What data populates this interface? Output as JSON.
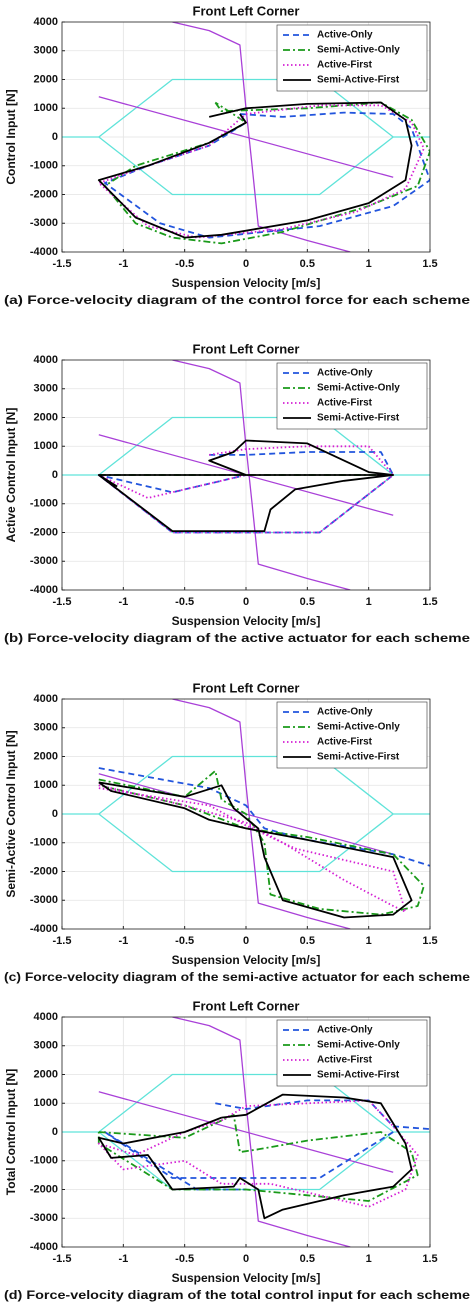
{
  "chart_data": [
    {
      "type": "line",
      "title": "Front Left Corner",
      "xlabel": "Suspension Velocity [m/s]",
      "ylabel": "Control Input [N]",
      "caption": "(a) Force-velocity diagram of the control force for each scheme",
      "xlim": [
        -1.5,
        1.5
      ],
      "xticks": [
        -1.5,
        -1,
        -0.5,
        0,
        0.5,
        1,
        1.5
      ],
      "ylim": [
        -4000,
        4000
      ],
      "yticks": [
        -4000,
        -3000,
        -2000,
        -1000,
        0,
        1000,
        2000,
        3000,
        4000
      ],
      "grid": true,
      "legend": "upper right",
      "series": [
        {
          "color": "#5fe3d9",
          "dash": "solid",
          "x": [
            -1.5,
            -1.2,
            -0.6,
            0.6,
            1.2,
            1.5,
            null,
            -1.2,
            -0.6,
            0.6,
            1.2
          ],
          "values": [
            0,
            0,
            2000,
            2000,
            0,
            0,
            null,
            0,
            -2000,
            -2000,
            0
          ]
        },
        {
          "color": "#a940d8",
          "dash": "solid",
          "x": [
            -1.2,
            1.2,
            null,
            -0.6,
            -0.3,
            -0.05,
            0,
            0.05,
            0.1,
            0.5,
            0.85
          ],
          "values": [
            1400,
            -1400,
            null,
            4000,
            3700,
            3200,
            1000,
            -1000,
            -3100,
            -3600,
            -4000
          ]
        },
        {
          "name": "Active-Only",
          "color": "#2255dd",
          "dash": "dashed",
          "x": [
            -0.05,
            0.3,
            0.8,
            1.2,
            1.35,
            1.5,
            1.2,
            0.6,
            -0.3,
            -0.7,
            -1.15,
            -0.8,
            -0.3,
            0,
            -0.05
          ],
          "values": [
            800,
            700,
            850,
            800,
            300,
            -1500,
            -2400,
            -3100,
            -3500,
            -3000,
            -1600,
            -1000,
            -300,
            500,
            800
          ]
        },
        {
          "name": "Semi-Active-Only",
          "color": "#1a9a1a",
          "dash": "dashdot",
          "x": [
            -0.25,
            -0.2,
            0.5,
            1.1,
            1.35,
            1.5,
            1.4,
            1.0,
            0.3,
            -0.2,
            -0.6,
            -0.9,
            -1.15,
            -0.9,
            -0.3,
            0,
            -0.25
          ],
          "values": [
            1200,
            900,
            1000,
            1200,
            600,
            -500,
            -1700,
            -2400,
            -3300,
            -3700,
            -3500,
            -3000,
            -1700,
            -1000,
            -200,
            500,
            1200
          ]
        },
        {
          "name": "Active-First",
          "color": "#d41fd4",
          "dash": "dotted",
          "x": [
            0,
            0.6,
            1.1,
            1.35,
            1.45,
            1.3,
            0.9,
            0.3,
            -0.4,
            -0.8,
            -1.2,
            -0.8,
            -0.3,
            0
          ],
          "values": [
            800,
            1100,
            1100,
            500,
            -400,
            -1800,
            -2600,
            -3200,
            -3500,
            -3100,
            -1600,
            -1000,
            -300,
            800
          ]
        },
        {
          "name": "Semi-Active-First",
          "color": "#000000",
          "dash": "solid",
          "x": [
            -0.3,
            -0.1,
            0,
            0.5,
            1.1,
            1.3,
            1.35,
            1.3,
            1.0,
            0.5,
            -0.2,
            -0.5,
            -0.9,
            -1.2,
            -0.8,
            -0.3,
            0,
            -0.05
          ],
          "values": [
            700,
            900,
            1000,
            1150,
            1200,
            600,
            -300,
            -1500,
            -2300,
            -2900,
            -3400,
            -3500,
            -2800,
            -1500,
            -1000,
            -200,
            500,
            800
          ]
        }
      ]
    },
    {
      "type": "line",
      "title": "Front Left Corner",
      "xlabel": "Suspension Velocity [m/s]",
      "ylabel": "Active Control Input [N]",
      "caption": "(b) Force-velocity diagram of the active actuator for each scheme",
      "xlim": [
        -1.5,
        1.5
      ],
      "xticks": [
        -1.5,
        -1,
        -0.5,
        0,
        0.5,
        1,
        1.5
      ],
      "ylim": [
        -4000,
        4000
      ],
      "yticks": [
        -4000,
        -3000,
        -2000,
        -1000,
        0,
        1000,
        2000,
        3000,
        4000
      ],
      "grid": true,
      "legend": "upper right",
      "series": [
        {
          "color": "#5fe3d9",
          "dash": "solid",
          "x": [
            -1.5,
            -1.2,
            -0.6,
            0.6,
            1.2,
            1.5,
            null,
            -1.2,
            -0.6,
            0.6,
            1.2
          ],
          "values": [
            0,
            0,
            2000,
            2000,
            0,
            0,
            null,
            0,
            -2000,
            -2000,
            0
          ]
        },
        {
          "color": "#a940d8",
          "dash": "solid",
          "x": [
            -1.2,
            1.2,
            null,
            -0.6,
            -0.3,
            -0.05,
            0,
            0.05,
            0.1,
            0.5,
            0.85
          ],
          "values": [
            1400,
            -1400,
            null,
            4000,
            3700,
            3200,
            1000,
            -1000,
            -3100,
            -3600,
            -4000
          ]
        },
        {
          "name": "Active-Only",
          "color": "#2255dd",
          "dash": "dashed",
          "x": [
            -0.3,
            0,
            0.5,
            1.1,
            1.2,
            0.6,
            -0.6,
            -1.2,
            -0.6,
            0
          ],
          "values": [
            700,
            700,
            800,
            800,
            0,
            -2000,
            -2000,
            0,
            -600,
            0
          ]
        },
        {
          "name": "Semi-Active-Only",
          "color": "#1a9a1a",
          "dash": "dashdot",
          "x": [
            -1.2,
            1.2
          ],
          "values": [
            0,
            0
          ]
        },
        {
          "name": "Active-First",
          "color": "#d41fd4",
          "dash": "dotted",
          "x": [
            -0.3,
            0,
            0.5,
            1.0,
            1.2,
            0.6,
            -0.6,
            -1.2,
            -0.8,
            0
          ],
          "values": [
            700,
            900,
            1000,
            1000,
            0,
            -2000,
            -2000,
            0,
            -800,
            0
          ]
        },
        {
          "name": "Semi-Active-First",
          "color": "#000000",
          "dash": "solid",
          "x": [
            -1.05,
            -1.2,
            0,
            1.2,
            1.0,
            0.5,
            0,
            -0.1,
            -0.3,
            0,
            null,
            -1.2,
            -0.6,
            0.15,
            0.2,
            0.4,
            0.8,
            1.2
          ],
          "values": [
            -400,
            0,
            0,
            0,
            100,
            1100,
            1200,
            800,
            500,
            0,
            null,
            0,
            -1950,
            -1950,
            -1200,
            -500,
            -200,
            0
          ]
        }
      ]
    },
    {
      "type": "line",
      "title": "Front Left Corner",
      "xlabel": "Suspension Velocity [m/s]",
      "ylabel": "Semi-Active Control Input [N]",
      "caption": "(c) Force-velocity diagram of the semi-active actuator for each scheme",
      "xlim": [
        -1.5,
        1.5
      ],
      "xticks": [
        -1.5,
        -1,
        -0.5,
        0,
        0.5,
        1,
        1.5
      ],
      "ylim": [
        -4000,
        4000
      ],
      "yticks": [
        -4000,
        -3000,
        -2000,
        -1000,
        0,
        1000,
        2000,
        3000,
        4000
      ],
      "grid": true,
      "legend": "upper right",
      "series": [
        {
          "color": "#5fe3d9",
          "dash": "solid",
          "x": [
            -1.5,
            -1.2,
            -0.6,
            0.6,
            1.2,
            1.5,
            null,
            -1.2,
            -0.6,
            0.6,
            1.2
          ],
          "values": [
            0,
            0,
            2000,
            2000,
            0,
            0,
            null,
            0,
            -2000,
            -2000,
            0
          ]
        },
        {
          "color": "#a940d8",
          "dash": "solid",
          "x": [
            -1.2,
            1.2,
            null,
            -0.6,
            -0.3,
            -0.05,
            0,
            0.05,
            0.1,
            0.5,
            0.85
          ],
          "values": [
            1400,
            -1400,
            null,
            4000,
            3700,
            3200,
            1000,
            -1000,
            -3100,
            -3600,
            -4000
          ]
        },
        {
          "name": "Active-Only",
          "color": "#2255dd",
          "dash": "dashed",
          "x": [
            -1.2,
            -0.3,
            0,
            0.15,
            0.5,
            1.2,
            1.5
          ],
          "values": [
            1600,
            900,
            300,
            -500,
            -900,
            -1400,
            -1800
          ]
        },
        {
          "name": "Semi-Active-Only",
          "color": "#1a9a1a",
          "dash": "dashdot",
          "x": [
            -1.2,
            -0.5,
            -0.25,
            -0.2,
            0,
            0.15,
            0.2,
            0.6,
            1.1,
            1.4,
            1.45,
            1.2,
            0.5,
            0,
            -0.5,
            -1.2
          ],
          "values": [
            1200,
            600,
            1500,
            500,
            0,
            -1000,
            -2800,
            -3300,
            -3500,
            -3200,
            -2500,
            -1400,
            -800,
            -500,
            300,
            1000
          ]
        },
        {
          "name": "Active-First",
          "color": "#d41fd4",
          "dash": "dotted",
          "x": [
            -1.2,
            -0.5,
            0,
            0.3,
            0.8,
            1.2,
            1.3,
            1.2,
            0.4,
            0,
            -0.3,
            -1.2
          ],
          "values": [
            1000,
            300,
            -300,
            -1000,
            -2300,
            -3200,
            -3400,
            -2000,
            -1200,
            -400,
            300,
            900
          ]
        },
        {
          "name": "Semi-Active-First",
          "color": "#000000",
          "dash": "solid",
          "x": [
            -1.2,
            -0.5,
            -0.2,
            -0.1,
            0.1,
            0.15,
            0.3,
            0.8,
            1.2,
            1.35,
            1.2,
            0.5,
            0,
            -0.3,
            -0.5,
            -1.1,
            -1.2
          ],
          "values": [
            1100,
            600,
            1000,
            200,
            -500,
            -1500,
            -3000,
            -3600,
            -3500,
            -3000,
            -1500,
            -900,
            -500,
            -200,
            200,
            800,
            1100
          ]
        }
      ]
    },
    {
      "type": "line",
      "title": "Front Left Corner",
      "xlabel": "Suspension Velocity [m/s]",
      "ylabel": "Total Control Input [N]",
      "caption": "(d) Force-velocity diagram of the total control input for each scheme",
      "xlim": [
        -1.5,
        1.5
      ],
      "xticks": [
        -1.5,
        -1,
        -0.5,
        0,
        0.5,
        1,
        1.5
      ],
      "ylim": [
        -4000,
        4000
      ],
      "yticks": [
        -4000,
        -3000,
        -2000,
        -1000,
        0,
        1000,
        2000,
        3000,
        4000
      ],
      "grid": true,
      "legend": "upper right",
      "series": [
        {
          "color": "#5fe3d9",
          "dash": "solid",
          "x": [
            -1.5,
            -1.2,
            -0.6,
            0.6,
            1.2,
            1.5,
            null,
            -1.2,
            -0.6,
            0.6,
            1.2
          ],
          "values": [
            0,
            0,
            2000,
            2000,
            0,
            0,
            null,
            0,
            -2000,
            -2000,
            0
          ]
        },
        {
          "color": "#a940d8",
          "dash": "solid",
          "x": [
            -1.2,
            1.2,
            null,
            -0.6,
            -0.3,
            -0.05,
            0,
            0.05,
            0.1,
            0.5,
            0.85
          ],
          "values": [
            1400,
            -1400,
            null,
            4000,
            3700,
            3200,
            1000,
            -1000,
            -3100,
            -3600,
            -4000
          ]
        },
        {
          "name": "Active-Only",
          "color": "#2255dd",
          "dash": "dashed",
          "x": [
            -0.25,
            0,
            0.5,
            1.0,
            1.2,
            1.5,
            null,
            1.2,
            0.6,
            -0.6,
            -1.15,
            -1.0,
            -0.4,
            0
          ],
          "values": [
            1000,
            800,
            1100,
            1100,
            200,
            100,
            null,
            0,
            -1600,
            -1600,
            0,
            -400,
            -2000,
            -2000
          ]
        },
        {
          "name": "Semi-Active-Only",
          "color": "#1a9a1a",
          "dash": "dashdot",
          "x": [
            -1.2,
            -0.5,
            -0.1,
            -0.05,
            0.1,
            0.5,
            1.1,
            1.35,
            1.4,
            1.0,
            0.5,
            0,
            -0.6,
            -1.2,
            -1.2
          ],
          "values": [
            0,
            -200,
            600,
            -700,
            -600,
            -300,
            0,
            -700,
            -1500,
            -2400,
            -2200,
            -2000,
            -2000,
            -400,
            0
          ]
        },
        {
          "name": "Active-First",
          "color": "#d41fd4",
          "dash": "dotted",
          "x": [
            -0.2,
            0,
            0.5,
            1.0,
            1.2,
            1.4,
            1.3,
            1.0,
            0.5,
            0.2,
            -0.2,
            -0.5,
            -1.0,
            -1.2,
            -0.9,
            -0.5,
            -0.2
          ],
          "values": [
            400,
            900,
            1000,
            1100,
            200,
            -800,
            -2000,
            -2600,
            -2100,
            -1800,
            -1800,
            -1000,
            -1300,
            -400,
            -800,
            0,
            400
          ]
        },
        {
          "name": "Semi-Active-First",
          "color": "#000000",
          "dash": "solid",
          "x": [
            -0.2,
            0,
            0.3,
            0.8,
            1.1,
            1.3,
            1.35,
            1.2,
            0.8,
            0.3,
            0.15,
            0.1,
            -0.05,
            -0.1,
            -0.6,
            -0.8,
            -1.1,
            -1.2,
            -1.0,
            -0.5,
            -0.2
          ],
          "values": [
            500,
            600,
            1300,
            1200,
            1000,
            -400,
            -1300,
            -1900,
            -2200,
            -2700,
            -3000,
            -2000,
            -1600,
            -1900,
            -2000,
            -800,
            -900,
            -200,
            -400,
            0,
            500
          ]
        }
      ]
    }
  ]
}
